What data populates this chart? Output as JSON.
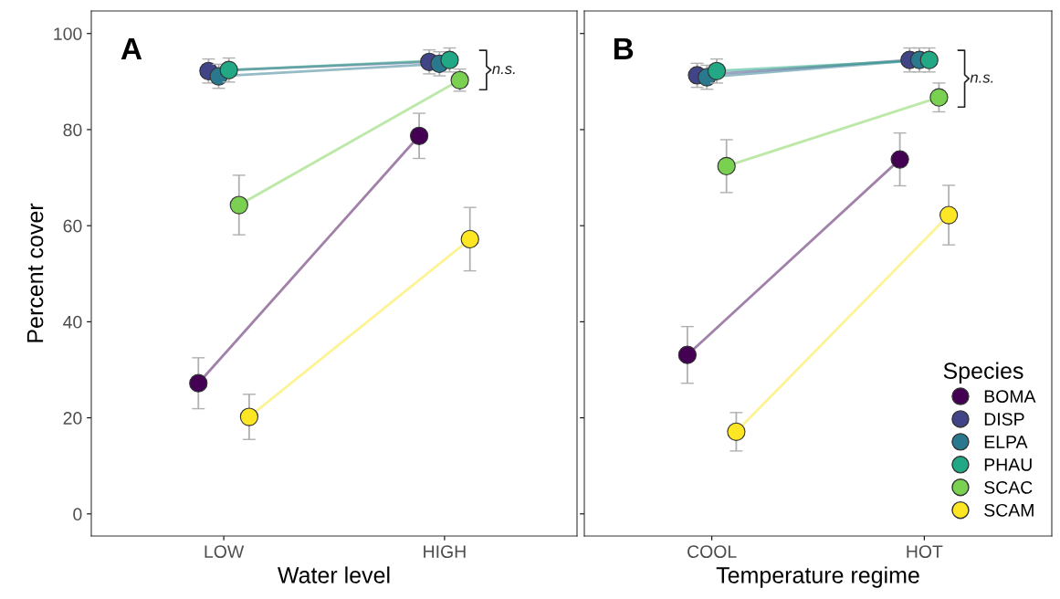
{
  "chart_data": [
    {
      "type": "line",
      "xlabel": "Water level",
      "ylabel": "Percent cover",
      "categories": [
        "LOW",
        "HIGH"
      ],
      "ylim": [
        -4.6,
        104.7
      ],
      "yticks": [
        0,
        20,
        40,
        60,
        80,
        100
      ],
      "grid": false,
      "legend": false,
      "marker": "circle",
      "line_style": "solid",
      "annotations": [
        "A",
        "n.s."
      ],
      "series": [
        {
          "color": "#440154",
          "values": [
            27.2,
            78.7
          ],
          "errors": [
            5.3,
            4.7
          ]
        },
        {
          "color": "#414487",
          "values": [
            92.2,
            94.1
          ],
          "errors": [
            2.5,
            2.5
          ]
        },
        {
          "color": "#2a788e",
          "values": [
            91.1,
            93.7
          ],
          "errors": [
            2.5,
            2.5
          ]
        },
        {
          "color": "#22a884",
          "values": [
            92.4,
            94.5
          ],
          "errors": [
            2.5,
            2.5
          ]
        },
        {
          "color": "#7ad151",
          "values": [
            64.3,
            90.3
          ],
          "errors": [
            6.2,
            2.3
          ]
        },
        {
          "color": "#fde725",
          "values": [
            20.2,
            57.2
          ],
          "errors": [
            4.7,
            6.6
          ]
        }
      ]
    },
    {
      "type": "line",
      "xlabel": "Temperature regime",
      "categories": [
        "COOL",
        "HOT"
      ],
      "ylim": [
        -4.6,
        104.7
      ],
      "yticks": [
        0,
        20,
        40,
        60,
        80,
        100
      ],
      "tick_labels": "x",
      "grid": false,
      "legend": "bottom right",
      "legend_title": "Species",
      "marker": "circle",
      "line_style": "solid",
      "annotations": [
        "B",
        "n.s."
      ],
      "series": [
        {
          "name": "BOMA",
          "color": "#440154",
          "values": [
            33.1,
            73.8
          ],
          "errors": [
            5.9,
            5.5
          ]
        },
        {
          "name": "DISP",
          "color": "#414487",
          "values": [
            91.3,
            94.5
          ],
          "errors": [
            2.5,
            2.5
          ]
        },
        {
          "name": "ELPA",
          "color": "#2a788e",
          "values": [
            90.9,
            94.5
          ],
          "errors": [
            2.5,
            2.5
          ]
        },
        {
          "name": "PHAU",
          "color": "#22a884",
          "values": [
            92.2,
            94.5
          ],
          "errors": [
            2.5,
            2.5
          ]
        },
        {
          "name": "SCAC",
          "color": "#7ad151",
          "values": [
            72.4,
            86.7
          ],
          "errors": [
            5.5,
            3.0
          ]
        },
        {
          "name": "SCAM",
          "color": "#fde725",
          "values": [
            17.1,
            62.2
          ],
          "errors": [
            4.0,
            6.2
          ]
        }
      ]
    }
  ]
}
